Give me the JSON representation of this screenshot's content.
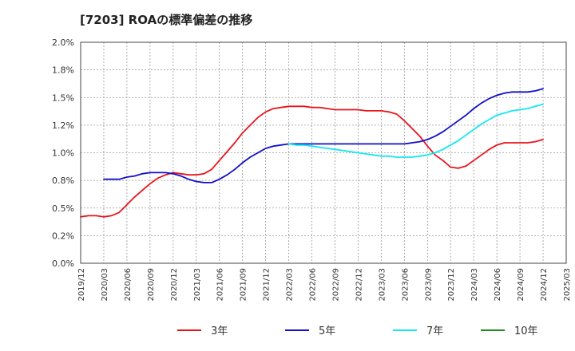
{
  "chart_data": {
    "type": "line",
    "title": "[7203]  ROAの標準偏差の推移",
    "xlabel": "",
    "ylabel": "",
    "ylim": [
      0,
      2.0
    ],
    "y_tick_labels": [
      "0.0%",
      "0.2%",
      "0.5%",
      "0.8%",
      "1.0%",
      "1.2%",
      "1.5%",
      "1.8%",
      "2.0%"
    ],
    "x_tick_labels": [
      "2019/12",
      "2020/03",
      "2020/06",
      "2020/09",
      "2020/12",
      "2021/03",
      "2021/06",
      "2021/09",
      "2021/12",
      "2022/03",
      "2022/06",
      "2022/09",
      "2022/12",
      "2023/03",
      "2023/06",
      "2023/09",
      "2023/12",
      "2024/03",
      "2024/06",
      "2024/09",
      "2024/12",
      "2025/03"
    ],
    "grid": true,
    "legend_position": "bottom",
    "series": [
      {
        "name": "3年",
        "color": "#e8141c",
        "points": [
          [
            "2019/12",
            0.42
          ],
          [
            "2020/01",
            0.43
          ],
          [
            "2020/02",
            0.43
          ],
          [
            "2020/03",
            0.42
          ],
          [
            "2020/04",
            0.43
          ],
          [
            "2020/05",
            0.46
          ],
          [
            "2020/06",
            0.53
          ],
          [
            "2020/07",
            0.6
          ],
          [
            "2020/08",
            0.66
          ],
          [
            "2020/09",
            0.72
          ],
          [
            "2020/10",
            0.77
          ],
          [
            "2020/11",
            0.8
          ],
          [
            "2020/12",
            0.82
          ],
          [
            "2021/01",
            0.81
          ],
          [
            "2021/02",
            0.8
          ],
          [
            "2021/03",
            0.8
          ],
          [
            "2021/04",
            0.81
          ],
          [
            "2021/05",
            0.85
          ],
          [
            "2021/06",
            0.93
          ],
          [
            "2021/07",
            1.01
          ],
          [
            "2021/08",
            1.09
          ],
          [
            "2021/09",
            1.18
          ],
          [
            "2021/10",
            1.25
          ],
          [
            "2021/11",
            1.32
          ],
          [
            "2021/12",
            1.37
          ],
          [
            "2022/01",
            1.4
          ],
          [
            "2022/02",
            1.41
          ],
          [
            "2022/03",
            1.42
          ],
          [
            "2022/04",
            1.42
          ],
          [
            "2022/05",
            1.42
          ],
          [
            "2022/06",
            1.41
          ],
          [
            "2022/07",
            1.41
          ],
          [
            "2022/08",
            1.4
          ],
          [
            "2022/09",
            1.39
          ],
          [
            "2022/10",
            1.39
          ],
          [
            "2022/11",
            1.39
          ],
          [
            "2022/12",
            1.39
          ],
          [
            "2023/01",
            1.38
          ],
          [
            "2023/02",
            1.38
          ],
          [
            "2023/03",
            1.38
          ],
          [
            "2023/04",
            1.37
          ],
          [
            "2023/05",
            1.35
          ],
          [
            "2023/06",
            1.29
          ],
          [
            "2023/07",
            1.22
          ],
          [
            "2023/08",
            1.15
          ],
          [
            "2023/09",
            1.06
          ],
          [
            "2023/10",
            0.98
          ],
          [
            "2023/11",
            0.93
          ],
          [
            "2023/12",
            0.87
          ],
          [
            "2024/01",
            0.86
          ],
          [
            "2024/02",
            0.88
          ],
          [
            "2024/03",
            0.93
          ],
          [
            "2024/04",
            0.98
          ],
          [
            "2024/05",
            1.03
          ],
          [
            "2024/06",
            1.07
          ],
          [
            "2024/07",
            1.09
          ],
          [
            "2024/08",
            1.09
          ],
          [
            "2024/09",
            1.09
          ],
          [
            "2024/10",
            1.09
          ],
          [
            "2024/11",
            1.1
          ],
          [
            "2024/12",
            1.12
          ]
        ]
      },
      {
        "name": "5年",
        "color": "#1010c8",
        "points": [
          [
            "2020/03",
            0.76
          ],
          [
            "2020/04",
            0.76
          ],
          [
            "2020/05",
            0.76
          ],
          [
            "2020/06",
            0.78
          ],
          [
            "2020/07",
            0.79
          ],
          [
            "2020/08",
            0.81
          ],
          [
            "2020/09",
            0.82
          ],
          [
            "2020/10",
            0.82
          ],
          [
            "2020/11",
            0.82
          ],
          [
            "2020/12",
            0.81
          ],
          [
            "2021/01",
            0.79
          ],
          [
            "2021/02",
            0.76
          ],
          [
            "2021/03",
            0.74
          ],
          [
            "2021/04",
            0.73
          ],
          [
            "2021/05",
            0.73
          ],
          [
            "2021/06",
            0.76
          ],
          [
            "2021/07",
            0.8
          ],
          [
            "2021/08",
            0.85
          ],
          [
            "2021/09",
            0.91
          ],
          [
            "2021/10",
            0.96
          ],
          [
            "2021/11",
            1.0
          ],
          [
            "2021/12",
            1.04
          ],
          [
            "2022/01",
            1.06
          ],
          [
            "2022/02",
            1.07
          ],
          [
            "2022/03",
            1.08
          ],
          [
            "2022/04",
            1.08
          ],
          [
            "2022/05",
            1.08
          ],
          [
            "2022/06",
            1.08
          ],
          [
            "2022/07",
            1.08
          ],
          [
            "2022/08",
            1.08
          ],
          [
            "2022/09",
            1.08
          ],
          [
            "2022/10",
            1.08
          ],
          [
            "2022/11",
            1.08
          ],
          [
            "2022/12",
            1.08
          ],
          [
            "2023/01",
            1.08
          ],
          [
            "2023/02",
            1.08
          ],
          [
            "2023/03",
            1.08
          ],
          [
            "2023/04",
            1.08
          ],
          [
            "2023/05",
            1.08
          ],
          [
            "2023/06",
            1.08
          ],
          [
            "2023/07",
            1.09
          ],
          [
            "2023/08",
            1.1
          ],
          [
            "2023/09",
            1.12
          ],
          [
            "2023/10",
            1.15
          ],
          [
            "2023/11",
            1.19
          ],
          [
            "2023/12",
            1.24
          ],
          [
            "2024/01",
            1.29
          ],
          [
            "2024/02",
            1.34
          ],
          [
            "2024/03",
            1.4
          ],
          [
            "2024/04",
            1.45
          ],
          [
            "2024/05",
            1.49
          ],
          [
            "2024/06",
            1.52
          ],
          [
            "2024/07",
            1.54
          ],
          [
            "2024/08",
            1.55
          ],
          [
            "2024/09",
            1.55
          ],
          [
            "2024/10",
            1.55
          ],
          [
            "2024/11",
            1.56
          ],
          [
            "2024/12",
            1.58
          ]
        ]
      },
      {
        "name": "7年",
        "color": "#12e8f0",
        "points": [
          [
            "2022/03",
            1.08
          ],
          [
            "2022/04",
            1.07
          ],
          [
            "2022/05",
            1.07
          ],
          [
            "2022/06",
            1.06
          ],
          [
            "2022/07",
            1.05
          ],
          [
            "2022/08",
            1.04
          ],
          [
            "2022/09",
            1.03
          ],
          [
            "2022/10",
            1.02
          ],
          [
            "2022/11",
            1.01
          ],
          [
            "2022/12",
            1.0
          ],
          [
            "2023/01",
            0.99
          ],
          [
            "2023/02",
            0.98
          ],
          [
            "2023/03",
            0.97
          ],
          [
            "2023/04",
            0.97
          ],
          [
            "2023/05",
            0.96
          ],
          [
            "2023/06",
            0.96
          ],
          [
            "2023/07",
            0.96
          ],
          [
            "2023/08",
            0.97
          ],
          [
            "2023/09",
            0.98
          ],
          [
            "2023/10",
            1.0
          ],
          [
            "2023/11",
            1.03
          ],
          [
            "2023/12",
            1.07
          ],
          [
            "2024/01",
            1.11
          ],
          [
            "2024/02",
            1.16
          ],
          [
            "2024/03",
            1.21
          ],
          [
            "2024/04",
            1.26
          ],
          [
            "2024/05",
            1.3
          ],
          [
            "2024/06",
            1.34
          ],
          [
            "2024/07",
            1.36
          ],
          [
            "2024/08",
            1.38
          ],
          [
            "2024/09",
            1.39
          ],
          [
            "2024/10",
            1.4
          ],
          [
            "2024/11",
            1.42
          ],
          [
            "2024/12",
            1.44
          ]
        ]
      },
      {
        "name": "10年",
        "color": "#1a8c1a",
        "points": []
      }
    ]
  }
}
